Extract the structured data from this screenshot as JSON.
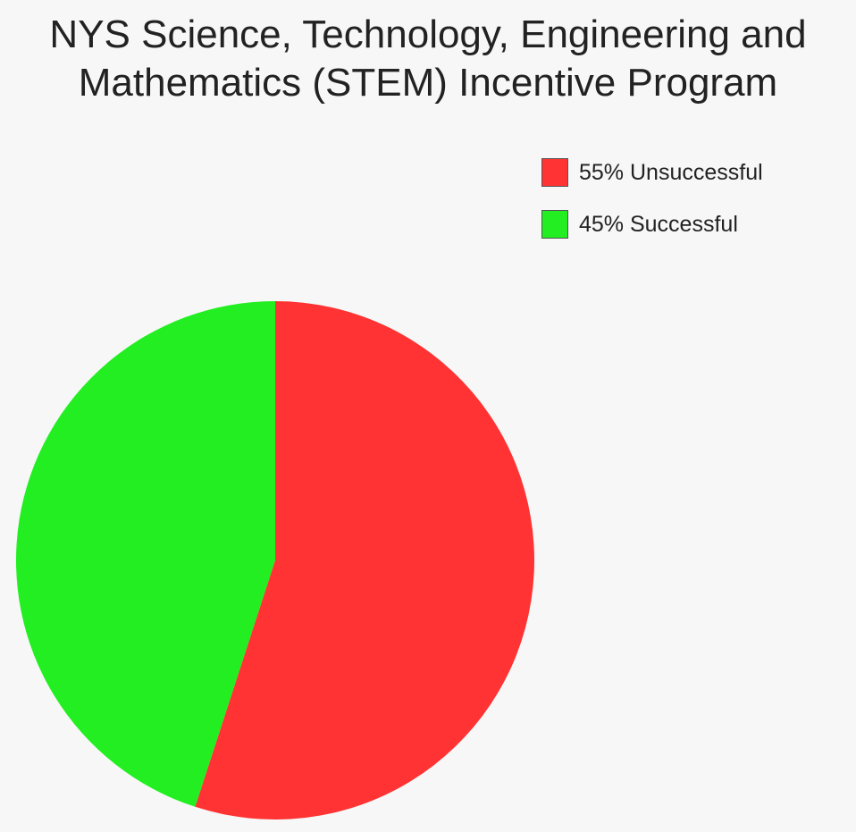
{
  "chart_data": {
    "type": "pie",
    "title_lines": [
      "NYS Science, Technology, Engineering and",
      "Mathematics (STEM) Incentive Program"
    ],
    "slices": [
      {
        "label": "Unsuccessful",
        "value": 55,
        "legend_text": "55% Unsuccessful",
        "color": "#ff3333"
      },
      {
        "label": "Successful",
        "value": 45,
        "legend_text": "45% Successful",
        "color": "#22ee22"
      }
    ],
    "legend_position": "top-right",
    "start_angle": "top",
    "direction": "clockwise"
  }
}
